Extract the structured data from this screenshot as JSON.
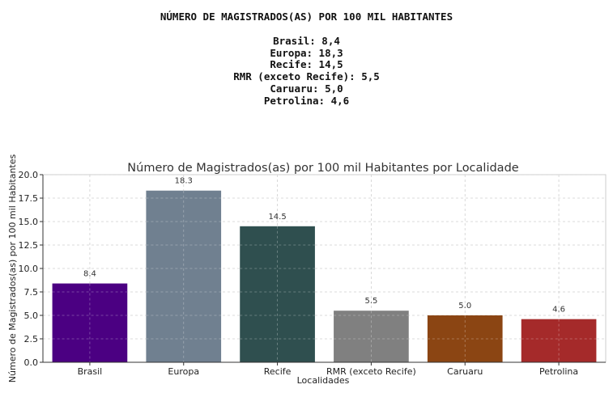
{
  "header": {
    "title": "NÚMERO DE MAGISTRADOS(AS) POR 100 MIL HABITANTES",
    "lines": [
      "Brasil: 8,4",
      "Europa: 18,3",
      "Recife: 14,5",
      "RMR (exceto Recife): 5,5",
      "Caruaru: 5,0",
      "Petrolina: 4,6"
    ]
  },
  "chart_data": {
    "type": "bar",
    "title": "Número de Magistrados(as) por 100 mil Habitantes por Localidade",
    "xlabel": "Localidades",
    "ylabel": "Número de Magistrados(as) por 100 mil Habitantes",
    "categories": [
      "Brasil",
      "Europa",
      "Recife",
      "RMR (exceto Recife)",
      "Caruaru",
      "Petrolina"
    ],
    "values": [
      8.4,
      18.3,
      14.5,
      5.5,
      5.0,
      4.6
    ],
    "data_labels": [
      "8.4",
      "18.3",
      "14.5",
      "5.5",
      "5.0",
      "4.6"
    ],
    "colors": [
      "#4b0082",
      "#708090",
      "#2f4f4f",
      "#808080",
      "#8b4513",
      "#a52a2a"
    ],
    "ylim": [
      0,
      20
    ],
    "yticks": [
      "0.0",
      "2.5",
      "5.0",
      "7.5",
      "10.0",
      "12.5",
      "15.0",
      "17.5",
      "20.0"
    ],
    "grid": true,
    "grid_style": "dashed"
  }
}
